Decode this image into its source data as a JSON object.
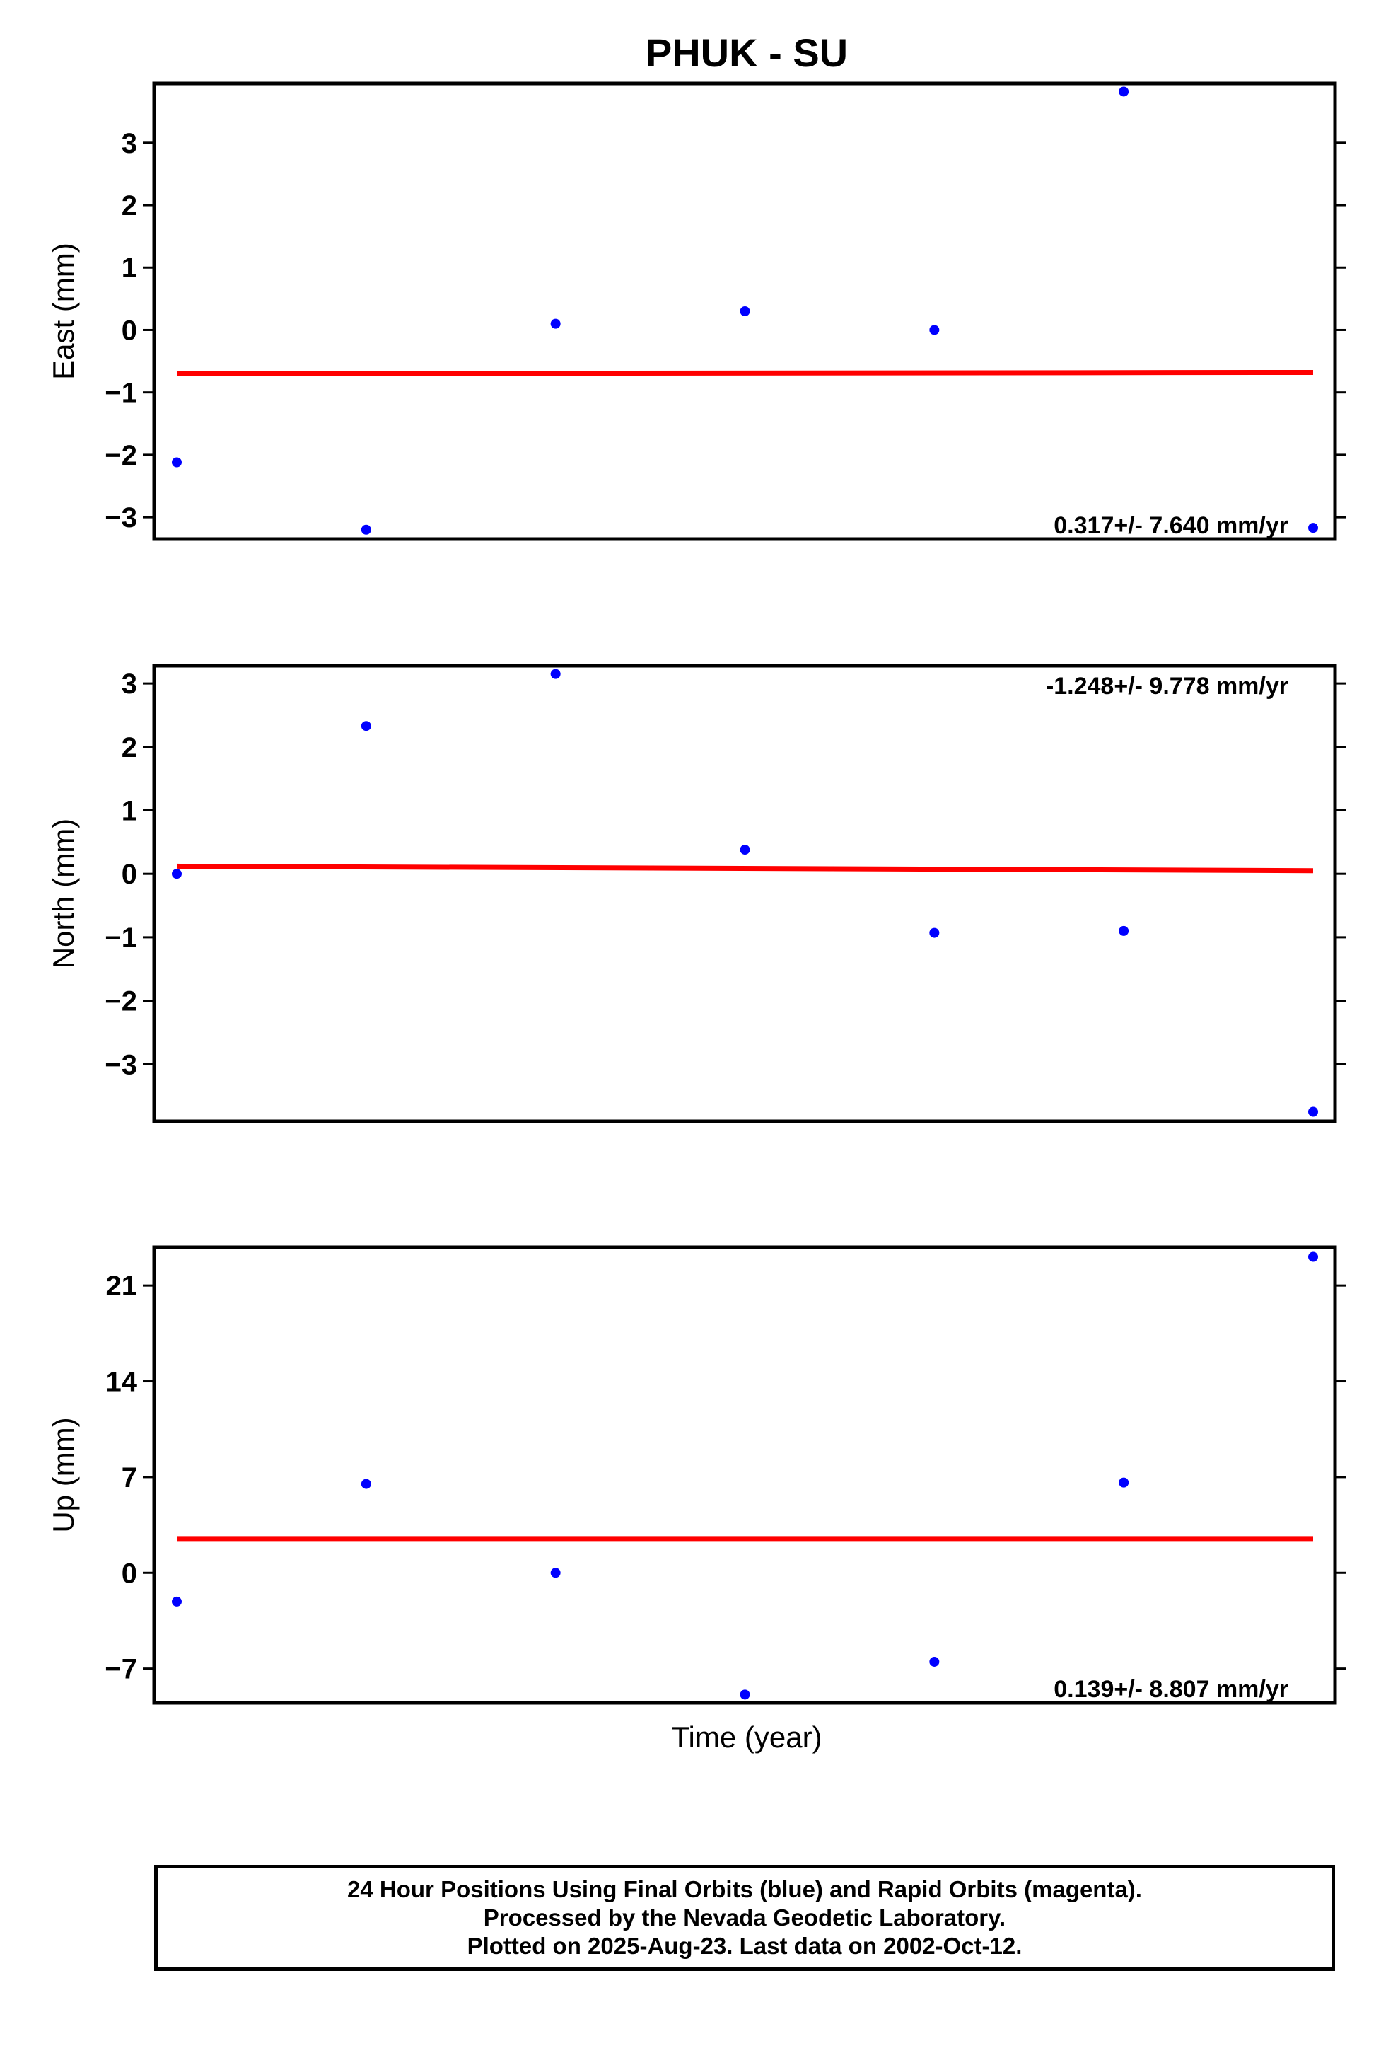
{
  "title": "PHUK - SU",
  "xlabel": "Time (year)",
  "footer": [
    "24 Hour Positions Using Final Orbits (blue) and Rapid Orbits (magenta).",
    "Processed by the Nevada Geodetic Laboratory.",
    "Plotted on 2025-Aug-23. Last data on 2002-Oct-12."
  ],
  "colors": {
    "points": "#0000ff",
    "fit": "#ff0000",
    "axes": "#000000"
  },
  "chart_data": [
    {
      "type": "scatter",
      "ylabel": "East (mm)",
      "ylim": [
        -3.35,
        3.95
      ],
      "yticks": [
        -3,
        -2,
        -1,
        0,
        1,
        2,
        3
      ],
      "ytick_labels": [
        "−3",
        "−2",
        "−1",
        "0",
        "1",
        "2",
        "3"
      ],
      "rate_label": "0.317+/- 7.640 mm/yr",
      "rate_label_position": "bottom-right",
      "series": [
        {
          "x": [
            0,
            1,
            2,
            3,
            4,
            5,
            6
          ],
          "values": [
            -2.12,
            -3.2,
            0.1,
            0.3,
            0.0,
            3.82,
            -3.17
          ]
        }
      ],
      "fit_line": {
        "x": [
          0,
          6
        ],
        "values": [
          -0.7,
          -0.68
        ]
      }
    },
    {
      "type": "scatter",
      "ylabel": "North (mm)",
      "ylim": [
        -3.9,
        3.28
      ],
      "yticks": [
        -3,
        -2,
        -1,
        0,
        1,
        2,
        3
      ],
      "ytick_labels": [
        "−3",
        "−2",
        "−1",
        "0",
        "1",
        "2",
        "3"
      ],
      "rate_label": "-1.248+/- 9.778 mm/yr",
      "rate_label_position": "top-right",
      "series": [
        {
          "x": [
            0,
            1,
            2,
            3,
            4,
            5,
            6
          ],
          "values": [
            0.0,
            2.33,
            3.15,
            0.38,
            -0.93,
            -0.9,
            -3.75
          ]
        }
      ],
      "fit_line": {
        "x": [
          0,
          6
        ],
        "values": [
          0.12,
          0.05
        ]
      }
    },
    {
      "type": "scatter",
      "ylabel": "Up (mm)",
      "ylim": [
        -9.5,
        23.8
      ],
      "yticks": [
        -7,
        0,
        7,
        14,
        21
      ],
      "ytick_labels": [
        "−7",
        "0",
        "7",
        "14",
        "21"
      ],
      "rate_label": "0.139+/- 8.807 mm/yr",
      "rate_label_position": "bottom-right",
      "series": [
        {
          "x": [
            0,
            1,
            2,
            3,
            4,
            5,
            6
          ],
          "values": [
            -2.1,
            6.5,
            0.0,
            -8.9,
            -6.5,
            6.6,
            23.1
          ]
        }
      ],
      "fit_line": {
        "x": [
          0,
          6
        ],
        "values": [
          2.5,
          2.5
        ]
      }
    }
  ]
}
